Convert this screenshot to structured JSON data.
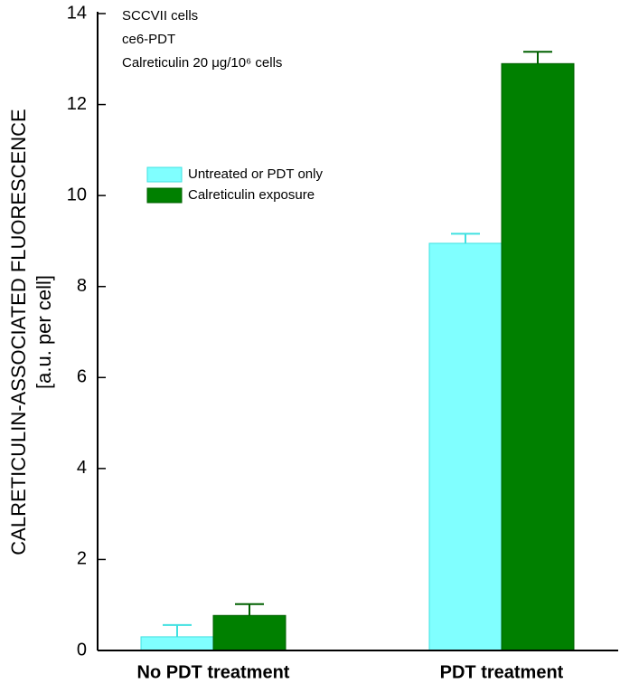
{
  "chart_data": {
    "type": "bar",
    "ylabel": [
      "CALRETICULIN-ASSOCIATED FLUORESCENCE",
      "[a.u. per cell]"
    ],
    "annotations": [
      "SCCVII cells",
      "ce6-PDT",
      "Calreticulin 20 μg/10⁶ cells"
    ],
    "categories": [
      "No PDT treatment",
      "PDT treatment"
    ],
    "series": [
      {
        "name": "Untreated or PDT only",
        "color": "#80ffff",
        "edge": "#40e0e0",
        "values": [
          0.3,
          8.95
        ],
        "errors": [
          0.26,
          0.21
        ]
      },
      {
        "name": "Calreticulin exposure",
        "color": "#008000",
        "edge": "#006000",
        "values": [
          0.77,
          12.9
        ],
        "errors": [
          0.25,
          0.26
        ]
      }
    ],
    "ylim": [
      0,
      14
    ],
    "yticks": [
      0,
      2,
      4,
      6,
      8,
      10,
      12,
      14
    ]
  }
}
